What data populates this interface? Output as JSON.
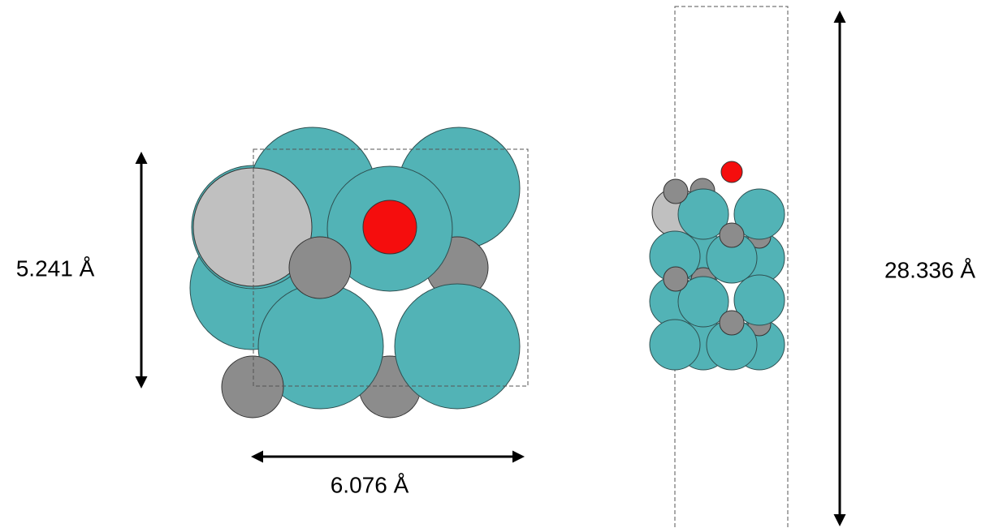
{
  "dimensions": {
    "height_label": "5.241 Å",
    "width_label": "6.076 Å",
    "cell_length_label": "28.336 Å"
  }
}
